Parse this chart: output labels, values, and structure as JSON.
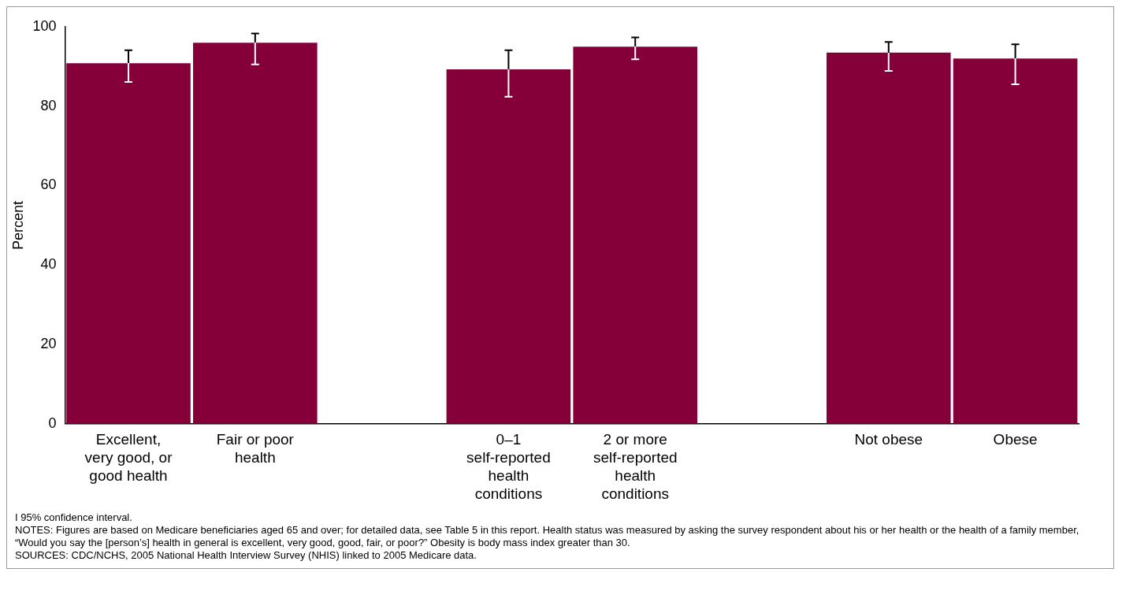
{
  "chart_data": {
    "type": "bar",
    "ylabel": "Percent",
    "categories": [
      "Excellent,\nvery good, or\ngood health",
      "Fair or poor\nhealth",
      null,
      "0–1\nself-reported\nhealth\nconditions",
      "2 or more\nself-reported\nhealth\nconditions",
      null,
      "Not obese",
      "Obese"
    ],
    "values": [
      90.8,
      96.0,
      null,
      89.3,
      95.0,
      null,
      93.5,
      92.0
    ],
    "errors": [
      [
        86.1,
        94.1
      ],
      [
        90.5,
        98.3
      ],
      null,
      [
        82.4,
        94.1
      ],
      [
        91.8,
        97.3
      ],
      null,
      [
        88.9,
        96.2
      ],
      [
        85.5,
        95.6
      ]
    ],
    "color": "#850038",
    "ylim": [
      0,
      100
    ],
    "yticks": [
      0,
      20,
      40,
      60,
      80,
      100
    ],
    "grid": false,
    "legend": false,
    "annotations": [
      "I 95% confidence interval.",
      "NOTES: Figures are based on Medicare beneficiaries aged 65 and over; for detailed data, see Table 5 in this report. Health status was measured by asking the survey respondent about his or her health or the health of a family member, “Would you say the [person’s] health in general is excellent, very good, good, fair, or poor?” Obesity is body mass index greater than 30.",
      "SOURCES: CDC/NCHS, 2005 National Health Interview Survey (NHIS) linked to 2005 Medicare data."
    ]
  }
}
